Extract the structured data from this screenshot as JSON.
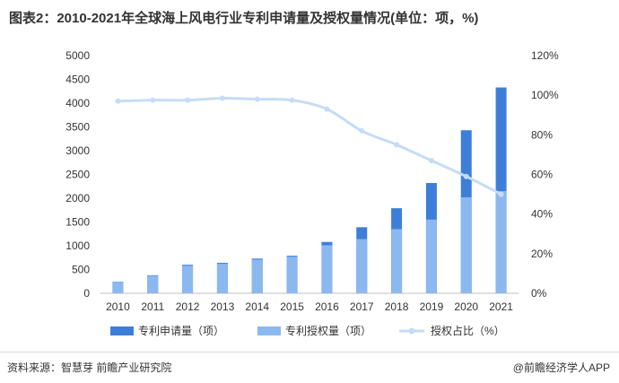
{
  "title": "图表2：2010-2021年全球海上风电行业专利申请量及授权量情况(单位：项，%)",
  "source": "资料来源：智慧芽 前瞻产业研究院",
  "credit": "@前瞻经济学人APP",
  "colors": {
    "application": "#3d7fd8",
    "grant": "#8cb8f0",
    "ratio": "#c5dcf7"
  },
  "chart_data": {
    "type": "bar",
    "categories": [
      "2010",
      "2011",
      "2012",
      "2013",
      "2014",
      "2015",
      "2016",
      "2017",
      "2018",
      "2019",
      "2020",
      "2021"
    ],
    "series": [
      {
        "name": "专利申请量（项）",
        "type": "bar",
        "axis": "left",
        "values": [
          240,
          380,
          600,
          640,
          730,
          790,
          1080,
          1390,
          1790,
          2320,
          3430,
          4330
        ]
      },
      {
        "name": "专利授权量（项）",
        "type": "bar",
        "axis": "left",
        "values": [
          230,
          370,
          580,
          620,
          710,
          770,
          1010,
          1140,
          1350,
          1550,
          2020,
          2150
        ]
      },
      {
        "name": "授权占比（%）",
        "type": "line",
        "axis": "right",
        "values": [
          97,
          97.5,
          97.5,
          98.5,
          98,
          97.5,
          93,
          82,
          75,
          67,
          59,
          50
        ]
      }
    ],
    "y_left": {
      "min": 0,
      "max": 5000,
      "ticks": [
        "0",
        "500",
        "1000",
        "1500",
        "2000",
        "2500",
        "3000",
        "3500",
        "4000",
        "4500",
        "5000"
      ]
    },
    "y_right": {
      "min": 0,
      "max": 120,
      "ticks": [
        "0%",
        "20%",
        "40%",
        "60%",
        "80%",
        "100%",
        "120%"
      ]
    },
    "legend_position": "bottom",
    "grid": false
  }
}
